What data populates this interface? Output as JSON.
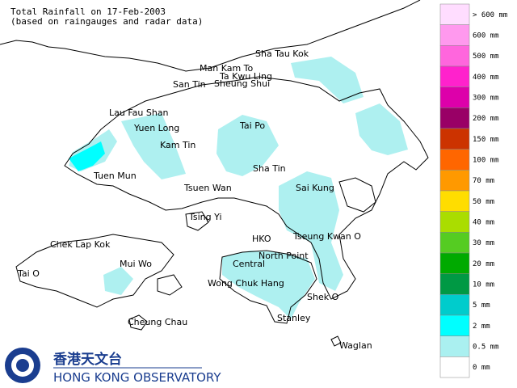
{
  "header": {
    "title": "Total Rainfall on 17-Feb-2003",
    "subtitle": "(based on raingauges and radar data)"
  },
  "places": [
    {
      "label": "Sha Tau Kok"
    },
    {
      "label": "Man Kam To"
    },
    {
      "label": "Ta Kwu Ling"
    },
    {
      "label": "San Tin"
    },
    {
      "label": "Sheung Shui"
    },
    {
      "label": "Lau Fau Shan"
    },
    {
      "label": "Yuen Long"
    },
    {
      "label": "Tai Po"
    },
    {
      "label": "Kam Tin"
    },
    {
      "label": "Sha Tin"
    },
    {
      "label": "Tuen Mun"
    },
    {
      "label": "Tsuen Wan"
    },
    {
      "label": "Sai Kung"
    },
    {
      "label": "Tsing Yi"
    },
    {
      "label": "HKO"
    },
    {
      "label": "Tseung Kwan O"
    },
    {
      "label": "Chek Lap Kok"
    },
    {
      "label": "North Point"
    },
    {
      "label": "Mui Wo"
    },
    {
      "label": "Central"
    },
    {
      "label": "Tai O"
    },
    {
      "label": "Wong Chuk Hang"
    },
    {
      "label": "Shek O"
    },
    {
      "label": "Stanley"
    },
    {
      "label": "Cheung Chau"
    },
    {
      "label": "Waglan"
    }
  ],
  "legend": [
    {
      "label": "> 600 mm",
      "color": "#ffddff"
    },
    {
      "label": "600 mm",
      "color": "#ff99ee"
    },
    {
      "label": "500 mm",
      "color": "#ff66dd"
    },
    {
      "label": "400 mm",
      "color": "#ff22cc"
    },
    {
      "label": "300 mm",
      "color": "#dd00aa"
    },
    {
      "label": "200 mm",
      "color": "#990066"
    },
    {
      "label": "150 mm",
      "color": "#cc3300"
    },
    {
      "label": "100 mm",
      "color": "#ff6600"
    },
    {
      "label": "70 mm",
      "color": "#ff9900"
    },
    {
      "label": "50 mm",
      "color": "#ffdd00"
    },
    {
      "label": "40 mm",
      "color": "#aadd00"
    },
    {
      "label": "30 mm",
      "color": "#55cc22"
    },
    {
      "label": "20 mm",
      "color": "#00aa00"
    },
    {
      "label": "10 mm",
      "color": "#009944"
    },
    {
      "label": "5 mm",
      "color": "#00cccc"
    },
    {
      "label": "2 mm",
      "color": "#00ffff"
    },
    {
      "label": "0.5 mm",
      "color": "#aaf0f0"
    },
    {
      "label": "0 mm",
      "color": "#ffffff"
    }
  ],
  "logo": {
    "chinese": "香港天文台",
    "english": "HONG KONG OBSERVATORY"
  }
}
